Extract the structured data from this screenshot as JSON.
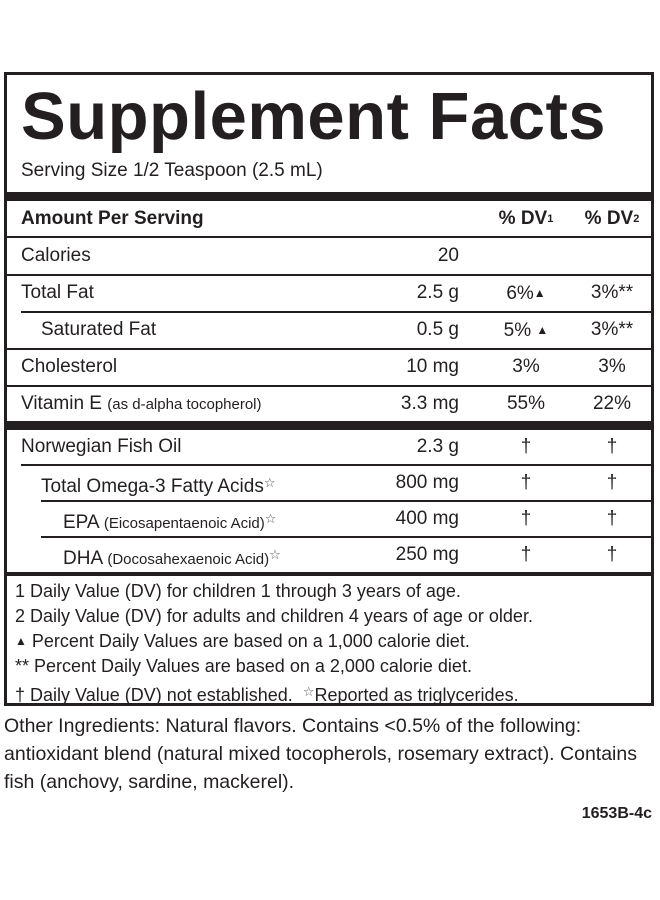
{
  "title": "Supplement Facts",
  "serving_size": "Serving Size 1/2 Teaspoon (2.5 mL)",
  "header": {
    "amount_label": "Amount Per Serving",
    "dv1_label": "% DV",
    "dv1_sup": "1",
    "dv2_label": "% DV",
    "dv2_sup": "2"
  },
  "rows": [
    {
      "name": "Calories",
      "amount": "20",
      "dv1": "",
      "dv2": ""
    },
    {
      "name": "Total Fat",
      "amount": "2.5 g",
      "dv1": "6%",
      "dv1_mark": "▲",
      "dv2": "3%**"
    },
    {
      "name": "Saturated Fat",
      "amount": "0.5 g",
      "dv1": "5%",
      "dv1_mark": "▲",
      "dv2": "3%**"
    },
    {
      "name": "Cholesterol",
      "amount": "10 mg",
      "dv1": "3%",
      "dv2": "3%"
    },
    {
      "name": "Vitamin E",
      "name_detail": "(as d-alpha tocopherol)",
      "amount": "3.3 mg",
      "dv1": "55%",
      "dv2": "22%"
    },
    {
      "name": "Norwegian Fish Oil",
      "amount": "2.3 g",
      "dv1": "†",
      "dv2": "†"
    },
    {
      "name": "Total Omega-3 Fatty Acids",
      "mark": "☆",
      "amount": "800 mg",
      "dv1": "†",
      "dv2": "†"
    },
    {
      "name": "EPA",
      "name_detail": "(Eicosapentaenoic Acid)",
      "mark": "☆",
      "amount": "400 mg",
      "dv1": "†",
      "dv2": "†"
    },
    {
      "name": "DHA",
      "name_detail": "(Docosahexaenoic Acid)",
      "mark": "☆",
      "amount": "250 mg",
      "dv1": "†",
      "dv2": "†"
    }
  ],
  "footnotes": {
    "note1": "1 Daily Value (DV) for children 1 through 3 years of age.",
    "note2": "2 Daily Value (DV) for adults and children 4 years of age or older.",
    "note3_mark": "▲",
    "note3": " Percent Daily Values are based on a 1,000 calorie diet.",
    "note4": "** Percent Daily Values are based on a 2,000 calorie diet.",
    "note5": "† Daily Value (DV) not established.",
    "note6_mark": "☆",
    "note6": "Reported as triglycerides."
  },
  "other_ingredients": "Other Ingredients: Natural flavors. Contains <0.5% of the following: antioxidant blend (natural mixed tocopherols, rosemary extract). Contains fish (anchovy, sardine, mackerel).",
  "code": "1653B-4c"
}
